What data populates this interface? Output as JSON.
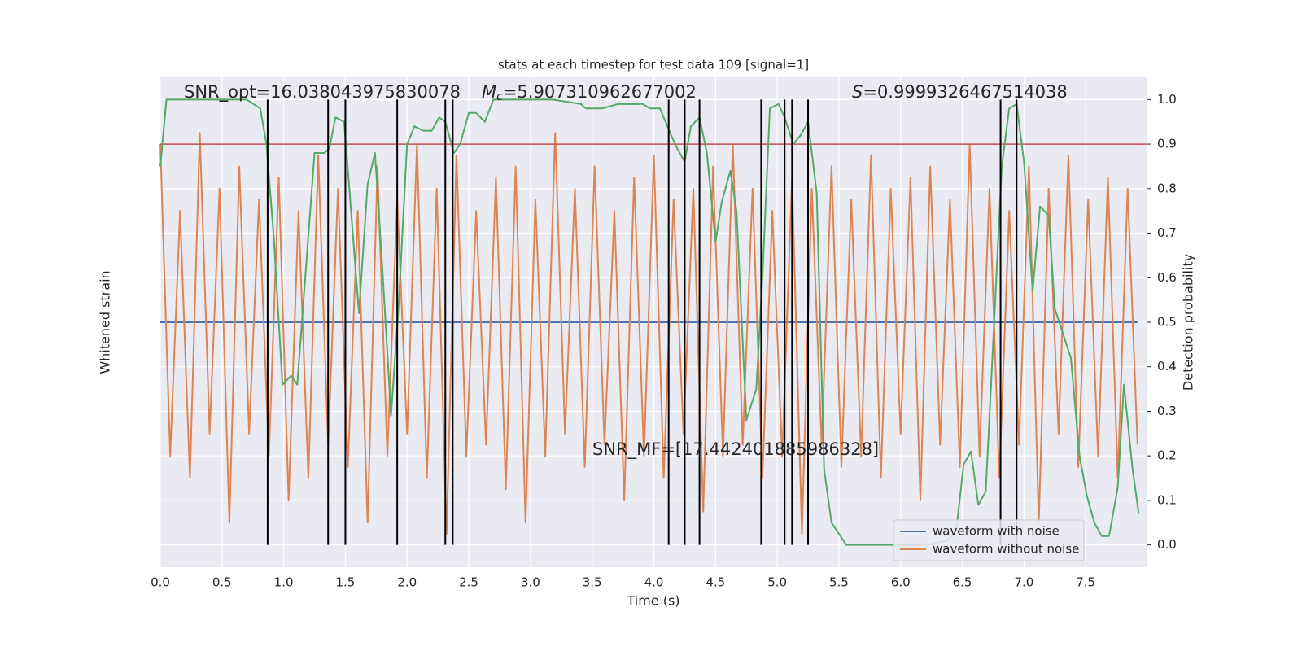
{
  "chart_data": {
    "type": "line",
    "title": "stats at each timestep for test data 109 [signal=1]",
    "xlabel": "Time (s)",
    "ylabel": "Whitened strain",
    "y2label": "Detection probability",
    "xlim": [
      0,
      8.0
    ],
    "ylim": [
      -1.1,
      1.1
    ],
    "y2lim": [
      -0.05,
      1.05
    ],
    "xticks": [
      {
        "value": 0,
        "label": "0.0"
      },
      0.5,
      {
        "value": 1,
        "label": "1.0"
      },
      1.5,
      {
        "value": 2,
        "label": "2.0"
      },
      2.5,
      {
        "value": 3,
        "label": "3.0"
      },
      3.5,
      {
        "value": 4,
        "label": "4.0"
      },
      4.5,
      {
        "value": 5,
        "label": "5.0"
      },
      5.5,
      {
        "value": 6,
        "label": "6.0"
      },
      6.5,
      {
        "value": 7,
        "label": "7.0"
      },
      7.5
    ],
    "y2ticks": [
      {
        "value": 0,
        "label": "0.0"
      },
      0.1,
      0.2,
      0.3,
      0.4,
      0.5,
      0.6,
      0.7,
      0.8,
      0.9,
      {
        "value": 1,
        "label": "1.0"
      }
    ],
    "grid": true,
    "background": "#eaeaf2",
    "legend": "lower right",
    "series": [
      {
        "name": "waveform with noise",
        "color": "#4c72b0",
        "x": [
          0,
          7.92
        ],
        "values": [
          0,
          0
        ]
      },
      {
        "name": "waveform without noise",
        "color": "#dd8452",
        "x": [
          0,
          0.08,
          0.16,
          0.24,
          0.32,
          0.4,
          0.48,
          0.56,
          0.64,
          0.72,
          0.8,
          0.88,
          0.96,
          1.04,
          1.12,
          1.2,
          1.28,
          1.36,
          1.44,
          1.52,
          1.6,
          1.68,
          1.76,
          1.84,
          1.92,
          2.0,
          2.08,
          2.16,
          2.24,
          2.32,
          2.4,
          2.48,
          2.56,
          2.64,
          2.72,
          2.8,
          2.88,
          2.96,
          3.04,
          3.12,
          3.2,
          3.28,
          3.36,
          3.44,
          3.52,
          3.6,
          3.68,
          3.76,
          3.84,
          3.92,
          4.0,
          4.08,
          4.16,
          4.24,
          4.32,
          4.4,
          4.48,
          4.56,
          4.64,
          4.72,
          4.8,
          4.88,
          4.96,
          5.04,
          5.12,
          5.2,
          5.28,
          5.36,
          5.44,
          5.52,
          5.6,
          5.68,
          5.76,
          5.84,
          5.92,
          6.0,
          6.08,
          6.16,
          6.24,
          6.32,
          6.4,
          6.48,
          6.56,
          6.64,
          6.72,
          6.8,
          6.88,
          6.96,
          7.04,
          7.12,
          7.2,
          7.28,
          7.36,
          7.44,
          7.52,
          7.6,
          7.68,
          7.76,
          7.84,
          7.92
        ],
        "values": [
          0.8,
          -0.6,
          0.5,
          -0.7,
          0.85,
          -0.5,
          0.6,
          -0.9,
          0.7,
          -0.5,
          0.55,
          -0.6,
          0.65,
          -0.8,
          0.5,
          -0.7,
          0.75,
          -0.55,
          0.6,
          -0.65,
          0.5,
          -0.9,
          0.7,
          -0.6,
          0.55,
          -0.5,
          0.8,
          -0.7,
          0.6,
          -0.95,
          0.75,
          -0.6,
          0.5,
          -0.55,
          0.65,
          -0.75,
          0.7,
          -0.9,
          0.55,
          -0.6,
          0.85,
          -0.5,
          0.6,
          -0.65,
          0.7,
          -0.55,
          0.5,
          -0.8,
          0.65,
          -0.6,
          0.75,
          -0.7,
          0.55,
          -0.5,
          0.6,
          -0.85,
          0.7,
          -0.6,
          0.8,
          -0.55,
          0.6,
          -0.7,
          0.5,
          -0.6,
          0.65,
          -0.95,
          0.6,
          -0.55,
          0.7,
          -0.65,
          0.55,
          -0.6,
          0.75,
          -0.7,
          0.6,
          -0.5,
          0.65,
          -0.8,
          0.7,
          -0.55,
          0.55,
          -0.65,
          0.8,
          -0.6,
          0.6,
          -0.7,
          0.5,
          -0.55,
          0.7,
          -0.9,
          0.6,
          -0.5,
          0.75,
          -0.65,
          0.55,
          -0.6,
          0.65,
          -0.7,
          0.6,
          -0.55
        ]
      }
    ],
    "probability": {
      "color": "#55a868",
      "axis": "y2",
      "x": [
        0,
        0.05,
        0.7,
        0.81,
        0.86,
        0.92,
        0.99,
        1.06,
        1.11,
        1.25,
        1.33,
        1.37,
        1.42,
        1.49,
        1.61,
        1.68,
        1.74,
        1.8,
        1.87,
        1.93,
        2.0,
        2.06,
        2.13,
        2.2,
        2.26,
        2.31,
        2.38,
        2.43,
        2.5,
        2.56,
        2.63,
        2.7,
        2.92,
        3.18,
        3.41,
        3.45,
        3.58,
        3.71,
        3.91,
        3.97,
        4.05,
        4.14,
        4.19,
        4.25,
        4.3,
        4.37,
        4.43,
        4.5,
        4.55,
        4.62,
        4.67,
        4.75,
        4.83,
        4.88,
        4.94,
        5.01,
        5.06,
        5.13,
        5.19,
        5.25,
        5.32,
        5.38,
        5.44,
        5.56,
        5.95,
        6.22,
        6.38,
        6.45,
        6.51,
        6.57,
        6.63,
        6.69,
        6.76,
        6.82,
        6.88,
        6.94,
        7.0,
        7.07,
        7.13,
        7.2,
        7.25,
        7.38,
        7.45,
        7.51,
        7.57,
        7.63,
        7.69,
        7.76,
        7.81,
        7.88,
        7.93
      ],
      "values": [
        0.85,
        1.0,
        1.0,
        0.98,
        0.9,
        0.69,
        0.36,
        0.38,
        0.36,
        0.88,
        0.88,
        0.89,
        0.96,
        0.95,
        0.52,
        0.81,
        0.88,
        0.62,
        0.29,
        0.53,
        0.9,
        0.94,
        0.93,
        0.93,
        0.96,
        0.95,
        0.88,
        0.9,
        0.97,
        0.97,
        0.95,
        1.0,
        1.0,
        1.0,
        0.99,
        0.98,
        0.98,
        0.99,
        0.99,
        0.98,
        0.98,
        0.92,
        0.89,
        0.86,
        0.94,
        0.96,
        0.88,
        0.68,
        0.77,
        0.84,
        0.75,
        0.28,
        0.35,
        0.6,
        0.98,
        0.99,
        0.96,
        0.9,
        0.92,
        0.95,
        0.79,
        0.17,
        0.05,
        0.0,
        0.0,
        0.0,
        0.01,
        0.03,
        0.18,
        0.21,
        0.09,
        0.12,
        0.51,
        0.85,
        0.98,
        0.99,
        0.86,
        0.57,
        0.76,
        0.74,
        0.53,
        0.42,
        0.2,
        0.11,
        0.05,
        0.02,
        0.02,
        0.13,
        0.36,
        0.17,
        0.07
      ]
    },
    "vlines": [
      0.87,
      1.36,
      1.5,
      1.92,
      2.31,
      2.37,
      4.12,
      4.25,
      4.37,
      4.87,
      5.06,
      5.12,
      5.25,
      6.81,
      6.94
    ],
    "vline_range": [
      0,
      1
    ],
    "vline_color": "#000000",
    "hline": 0.9,
    "hline_color": "#c44e52",
    "annotations": [
      {
        "text": "SNR_opt=16.038043975830078"
      },
      {
        "symbol": "M",
        "sub": "c",
        "text": "=5.907310962677002"
      },
      {
        "symbol": "S",
        "text": "=0.9999326467514038"
      },
      {
        "text": "SNR_MF=[17.442401885986328]"
      }
    ]
  }
}
